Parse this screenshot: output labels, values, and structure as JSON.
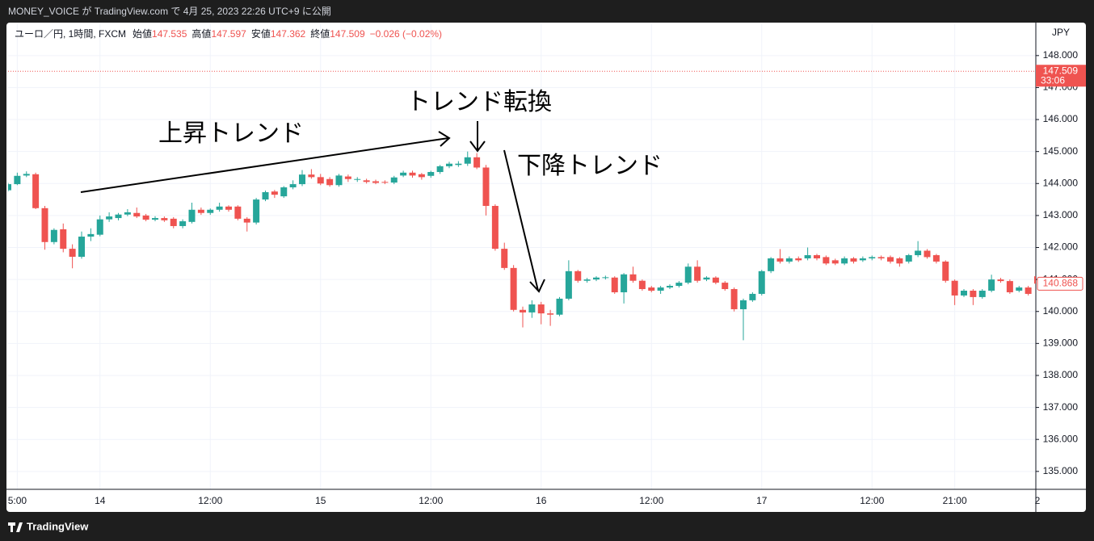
{
  "header": {
    "title": "MONEY_VOICE が TradingView.com で 4月 25, 2023 22:26 UTC+9 に公開"
  },
  "footer": {
    "brand": "TradingView"
  },
  "chart_data": {
    "type": "candlestick",
    "symbol": "ユーロ／円, 1時間, FXCM",
    "legend": {
      "open_label": "始値",
      "open": 147.535,
      "high_label": "高値",
      "high": 147.597,
      "low_label": "安値",
      "low": 147.362,
      "close_label": "終値",
      "close": 147.509,
      "change": "−0.026 (−0.02%)"
    },
    "currency": "JPY",
    "annotations": [
      "上昇トレンド",
      "トレンド転換",
      "下降トレンド"
    ],
    "up_color": "#26a69a",
    "down_color": "#ef5350",
    "price_line": 147.509,
    "countdown": "33:06",
    "last_price": 140.868,
    "ylim": [
      134.44,
      148.98
    ],
    "yticks": [
      {
        "value": 148,
        "label": "148.000"
      },
      {
        "value": 147,
        "label": "147.000"
      },
      {
        "value": 146,
        "label": "146.000"
      },
      {
        "value": 145,
        "label": "145.000"
      },
      {
        "value": 144,
        "label": "144.000"
      },
      {
        "value": 143,
        "label": "143.000"
      },
      {
        "value": 142,
        "label": "142.000"
      },
      {
        "value": 141,
        "label": "141.000"
      },
      {
        "value": 140,
        "label": "140.000"
      },
      {
        "value": 139,
        "label": "139.000"
      },
      {
        "value": 138,
        "label": "138.000"
      },
      {
        "value": 137,
        "label": "137.000"
      },
      {
        "value": 136,
        "label": "136.000"
      },
      {
        "value": 135,
        "label": "135.000"
      }
    ],
    "grid": true,
    "categories": [
      null,
      "5:00",
      null,
      null,
      null,
      null,
      null,
      null,
      null,
      null,
      "14",
      null,
      null,
      null,
      null,
      null,
      null,
      null,
      null,
      null,
      null,
      null,
      "12:00",
      null,
      null,
      null,
      null,
      null,
      null,
      null,
      null,
      null,
      null,
      null,
      "15",
      null,
      null,
      null,
      null,
      null,
      null,
      null,
      null,
      null,
      null,
      null,
      "12:00",
      null,
      null,
      null,
      null,
      null,
      null,
      null,
      null,
      null,
      null,
      null,
      "16",
      null,
      null,
      null,
      null,
      null,
      null,
      null,
      null,
      null,
      null,
      null,
      "12:00",
      null,
      null,
      null,
      null,
      null,
      null,
      null,
      null,
      null,
      null,
      null,
      "17",
      null,
      null,
      null,
      null,
      null,
      null,
      null,
      null,
      null,
      null,
      null,
      "12:00",
      null,
      null,
      null,
      null,
      null,
      null,
      null,
      null,
      "21:00",
      null,
      null,
      null,
      null,
      null,
      null,
      null,
      null,
      "2"
    ],
    "open": [
      143.79,
      143.98,
      144.25,
      144.29,
      143.23,
      142.17,
      142.57,
      141.96,
      141.71,
      142.34,
      142.4,
      142.88,
      142.92,
      143.03,
      143.08,
      143.0,
      142.87,
      142.92,
      142.9,
      142.67,
      142.8,
      143.18,
      143.08,
      143.18,
      143.28,
      143.28,
      142.9,
      142.78,
      143.5,
      143.75,
      143.6,
      143.88,
      143.98,
      144.28,
      144.2,
      144.14,
      143.95,
      144.22,
      144.12,
      144.1,
      144.07,
      144.05,
      144.03,
      144.25,
      144.34,
      144.29,
      144.24,
      144.36,
      144.54,
      144.58,
      144.62,
      144.82,
      144.5,
      143.3,
      141.96,
      141.36,
      140.05,
      139.97,
      140.22,
      139.94,
      139.9,
      140.4,
      141.26,
      140.96,
      141.0,
      141.05,
      141.06,
      140.6,
      141.16,
      140.96,
      140.75,
      140.65,
      140.75,
      140.8,
      140.9,
      141.4,
      141.0,
      141.06,
      140.9,
      140.7,
      140.07,
      140.35,
      140.55,
      141.26,
      141.66,
      141.56,
      141.66,
      141.66,
      141.76,
      141.7,
      141.6,
      141.5,
      141.66,
      141.6,
      141.66,
      141.7,
      141.7,
      141.66,
      141.56,
      141.76,
      141.9,
      141.76,
      141.56,
      140.96,
      140.5,
      140.65,
      140.45,
      140.65,
      141.0,
      140.95,
      140.65,
      140.75,
      141.1
    ],
    "high": [
      144.02,
      144.34,
      144.38,
      144.34,
      143.3,
      142.6,
      142.75,
      142.1,
      142.5,
      142.6,
      143.0,
      143.1,
      143.08,
      143.2,
      143.25,
      143.05,
      142.98,
      142.97,
      142.95,
      142.88,
      143.4,
      143.25,
      143.22,
      143.4,
      143.32,
      143.32,
      142.95,
      143.55,
      143.78,
      143.8,
      143.92,
      144.1,
      144.42,
      144.45,
      144.3,
      144.2,
      144.3,
      144.28,
      144.2,
      144.15,
      144.12,
      144.1,
      144.24,
      144.4,
      144.4,
      144.33,
      144.4,
      144.58,
      144.68,
      144.7,
      145.0,
      144.95,
      144.58,
      143.35,
      142.15,
      141.45,
      140.15,
      140.35,
      140.3,
      140.05,
      140.45,
      141.6,
      141.3,
      141.05,
      141.1,
      141.12,
      141.1,
      141.2,
      141.4,
      141.0,
      140.8,
      140.8,
      140.85,
      140.95,
      141.5,
      141.6,
      141.1,
      141.1,
      140.95,
      140.75,
      140.4,
      140.6,
      141.3,
      141.7,
      141.95,
      141.72,
      141.72,
      142.0,
      141.8,
      141.75,
      141.65,
      141.72,
      141.7,
      141.72,
      141.75,
      141.75,
      141.75,
      141.7,
      141.8,
      142.2,
      141.95,
      141.8,
      141.6,
      141.0,
      140.7,
      140.7,
      140.7,
      141.15,
      141.05,
      141.0,
      140.8,
      140.8,
      141.15
    ],
    "low": [
      143.75,
      143.95,
      144.2,
      143.2,
      141.93,
      142.1,
      141.85,
      141.35,
      141.65,
      142.2,
      142.35,
      142.8,
      142.85,
      142.98,
      142.92,
      142.82,
      142.82,
      142.8,
      142.6,
      142.6,
      142.75,
      143.02,
      143.02,
      143.12,
      143.12,
      142.85,
      142.5,
      142.72,
      143.45,
      143.55,
      143.55,
      143.82,
      143.92,
      144.15,
      143.95,
      143.9,
      143.9,
      144.05,
      144.05,
      144.0,
      143.98,
      143.98,
      143.98,
      144.2,
      144.18,
      144.12,
      144.18,
      144.3,
      144.48,
      144.52,
      144.55,
      144.45,
      143.0,
      141.9,
      141.3,
      140.0,
      139.5,
      139.8,
      139.6,
      139.55,
      139.85,
      140.35,
      140.9,
      140.9,
      140.95,
      141.0,
      140.55,
      140.25,
      140.9,
      140.65,
      140.6,
      140.55,
      140.7,
      140.75,
      140.85,
      140.9,
      140.95,
      140.85,
      140.65,
      140.0,
      139.1,
      140.3,
      140.5,
      141.2,
      141.5,
      141.5,
      141.55,
      141.6,
      141.6,
      141.45,
      141.45,
      141.45,
      141.5,
      141.55,
      141.6,
      141.6,
      141.5,
      141.4,
      141.5,
      141.7,
      141.65,
      141.5,
      140.9,
      140.2,
      140.45,
      140.2,
      140.4,
      140.6,
      140.9,
      140.55,
      140.6,
      140.5,
      140.85
    ],
    "close": [
      143.98,
      144.24,
      144.3,
      143.23,
      142.17,
      142.55,
      141.96,
      141.71,
      142.34,
      142.42,
      142.88,
      142.97,
      143.03,
      143.1,
      142.97,
      142.87,
      142.92,
      142.85,
      142.67,
      142.82,
      143.18,
      143.08,
      143.18,
      143.28,
      143.18,
      142.9,
      142.78,
      143.5,
      143.73,
      143.65,
      143.88,
      143.98,
      144.28,
      144.2,
      144.0,
      143.95,
      144.25,
      144.14,
      144.14,
      144.05,
      144.02,
      144.03,
      144.19,
      144.34,
      144.25,
      144.2,
      144.36,
      144.54,
      144.62,
      144.62,
      144.82,
      144.5,
      143.3,
      141.96,
      141.36,
      140.05,
      139.97,
      140.22,
      139.94,
      139.9,
      140.4,
      141.26,
      140.96,
      141.0,
      141.06,
      141.07,
      140.6,
      141.16,
      140.96,
      140.7,
      140.65,
      140.75,
      140.8,
      140.9,
      141.4,
      140.96,
      141.06,
      140.9,
      140.7,
      140.07,
      140.35,
      140.55,
      141.26,
      141.66,
      141.56,
      141.66,
      141.6,
      141.76,
      141.66,
      141.5,
      141.5,
      141.66,
      141.56,
      141.66,
      141.7,
      141.66,
      141.56,
      141.5,
      141.76,
      141.9,
      141.7,
      141.56,
      140.96,
      140.5,
      140.65,
      140.45,
      140.65,
      141.0,
      140.95,
      140.6,
      140.75,
      140.55,
      140.87
    ]
  }
}
